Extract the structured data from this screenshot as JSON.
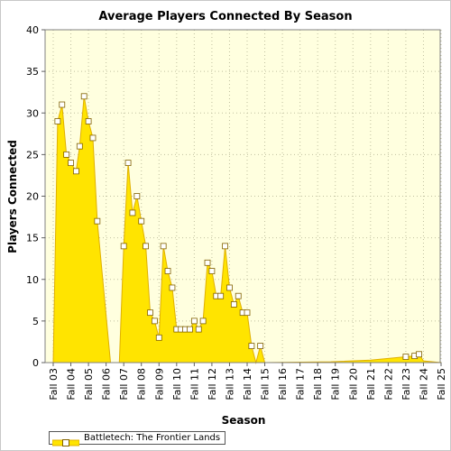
{
  "chart_data": {
    "type": "area",
    "title": "Average Players Connected By Season",
    "xlabel": "Season",
    "ylabel": "Players Connected",
    "ylim": [
      0,
      40
    ],
    "yticks": [
      0,
      5,
      10,
      15,
      20,
      25,
      30,
      35,
      40
    ],
    "grid": true,
    "legend_position": "bottom-left",
    "colors": {
      "fill": "#ffe400",
      "line": "#e0b000",
      "marker_fill": "#ffffff",
      "marker_stroke": "#806000",
      "plot_bg": "#ffffdf"
    },
    "xticks": [
      "Fall 03",
      "Fall 04",
      "Fall 05",
      "Fall 06",
      "Fall 07",
      "Fall 08",
      "Fall 09",
      "Fall 10",
      "Fall 11",
      "Fall 12",
      "Fall 13",
      "Fall 14",
      "Fall 15",
      "Fall 16",
      "Fall 17",
      "Fall 18",
      "Fall 19",
      "Fall 20",
      "Fall 21",
      "Fall 22",
      "Fall 23",
      "Fall 24",
      "Fall 25"
    ],
    "series": [
      {
        "name": "Battletech: The Frontier Lands",
        "points": [
          [
            0.0,
            0
          ],
          [
            0.25,
            29
          ],
          [
            0.5,
            31
          ],
          [
            0.75,
            25
          ],
          [
            1.0,
            24
          ],
          [
            1.3,
            23
          ],
          [
            1.5,
            26
          ],
          [
            1.75,
            32
          ],
          [
            2.0,
            29
          ],
          [
            2.25,
            27
          ],
          [
            2.5,
            17
          ],
          [
            3.25,
            0
          ],
          [
            3.75,
            0
          ],
          [
            4.0,
            14
          ],
          [
            4.25,
            24
          ],
          [
            4.5,
            18
          ],
          [
            4.75,
            20
          ],
          [
            5.0,
            17
          ],
          [
            5.25,
            14
          ],
          [
            5.5,
            6
          ],
          [
            5.75,
            5
          ],
          [
            6.0,
            3
          ],
          [
            6.25,
            14
          ],
          [
            6.5,
            11
          ],
          [
            6.75,
            9
          ],
          [
            7.0,
            4
          ],
          [
            7.25,
            4
          ],
          [
            7.5,
            4
          ],
          [
            7.75,
            4
          ],
          [
            8.0,
            5
          ],
          [
            8.25,
            4
          ],
          [
            8.5,
            5
          ],
          [
            8.75,
            12
          ],
          [
            9.0,
            11
          ],
          [
            9.25,
            8
          ],
          [
            9.5,
            8
          ],
          [
            9.75,
            14
          ],
          [
            10.0,
            9
          ],
          [
            10.25,
            7
          ],
          [
            10.5,
            8
          ],
          [
            10.75,
            6
          ],
          [
            11.0,
            6
          ],
          [
            11.25,
            2
          ],
          [
            11.5,
            0
          ],
          [
            11.75,
            2
          ],
          [
            12.0,
            0
          ],
          [
            15.75,
            0.1
          ],
          [
            18.0,
            0.3
          ],
          [
            20.0,
            0.7
          ],
          [
            20.5,
            0.8
          ],
          [
            20.75,
            1
          ],
          [
            21.0,
            0.2
          ],
          [
            22.0,
            0
          ]
        ]
      }
    ]
  }
}
